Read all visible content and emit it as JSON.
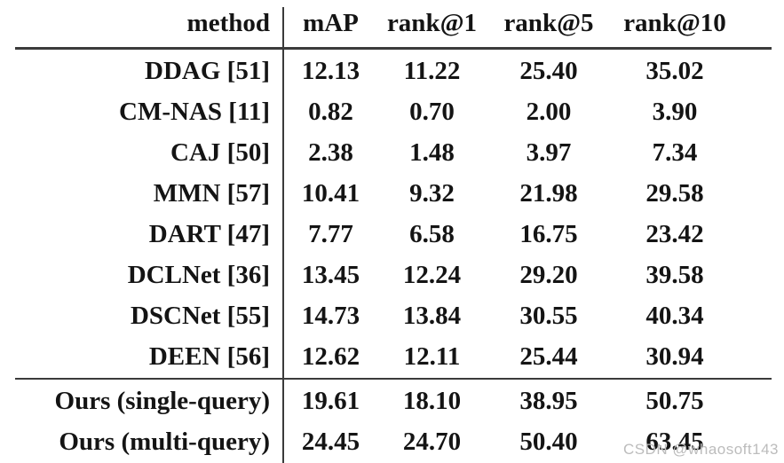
{
  "table": {
    "header": {
      "method_label": "method",
      "metric_labels": [
        "mAP",
        "rank@1",
        "rank@5",
        "rank@10"
      ]
    },
    "rows": [
      {
        "method": "DDAG [51]",
        "values": [
          "12.13",
          "11.22",
          "25.40",
          "35.02"
        ],
        "group": "baseline"
      },
      {
        "method": "CM-NAS [11]",
        "values": [
          "0.82",
          "0.70",
          "2.00",
          "3.90"
        ],
        "group": "baseline"
      },
      {
        "method": "CAJ [50]",
        "values": [
          "2.38",
          "1.48",
          "3.97",
          "7.34"
        ],
        "group": "baseline"
      },
      {
        "method": "MMN [57]",
        "values": [
          "10.41",
          "9.32",
          "21.98",
          "29.58"
        ],
        "group": "baseline"
      },
      {
        "method": "DART [47]",
        "values": [
          "7.77",
          "6.58",
          "16.75",
          "23.42"
        ],
        "group": "baseline"
      },
      {
        "method": "DCLNet [36]",
        "values": [
          "13.45",
          "12.24",
          "29.20",
          "39.58"
        ],
        "group": "baseline"
      },
      {
        "method": "DSCNet [55]",
        "values": [
          "14.73",
          "13.84",
          "30.55",
          "40.34"
        ],
        "group": "baseline"
      },
      {
        "method": "DEEN [56]",
        "values": [
          "12.62",
          "12.11",
          "25.44",
          "30.94"
        ],
        "group": "baseline"
      },
      {
        "method": "Ours (single-query)",
        "values": [
          "19.61",
          "18.10",
          "38.95",
          "50.75"
        ],
        "group": "ours"
      },
      {
        "method": "Ours (multi-query)",
        "values": [
          "24.45",
          "24.70",
          "50.40",
          "63.45"
        ],
        "group": "ours"
      }
    ]
  },
  "watermark": {
    "text": "CSDN @whaosoft143"
  },
  "colors": {
    "background": "#ffffff",
    "text": "#141414",
    "rule": "#3b3b3b",
    "watermark": "#bcbcbc"
  }
}
